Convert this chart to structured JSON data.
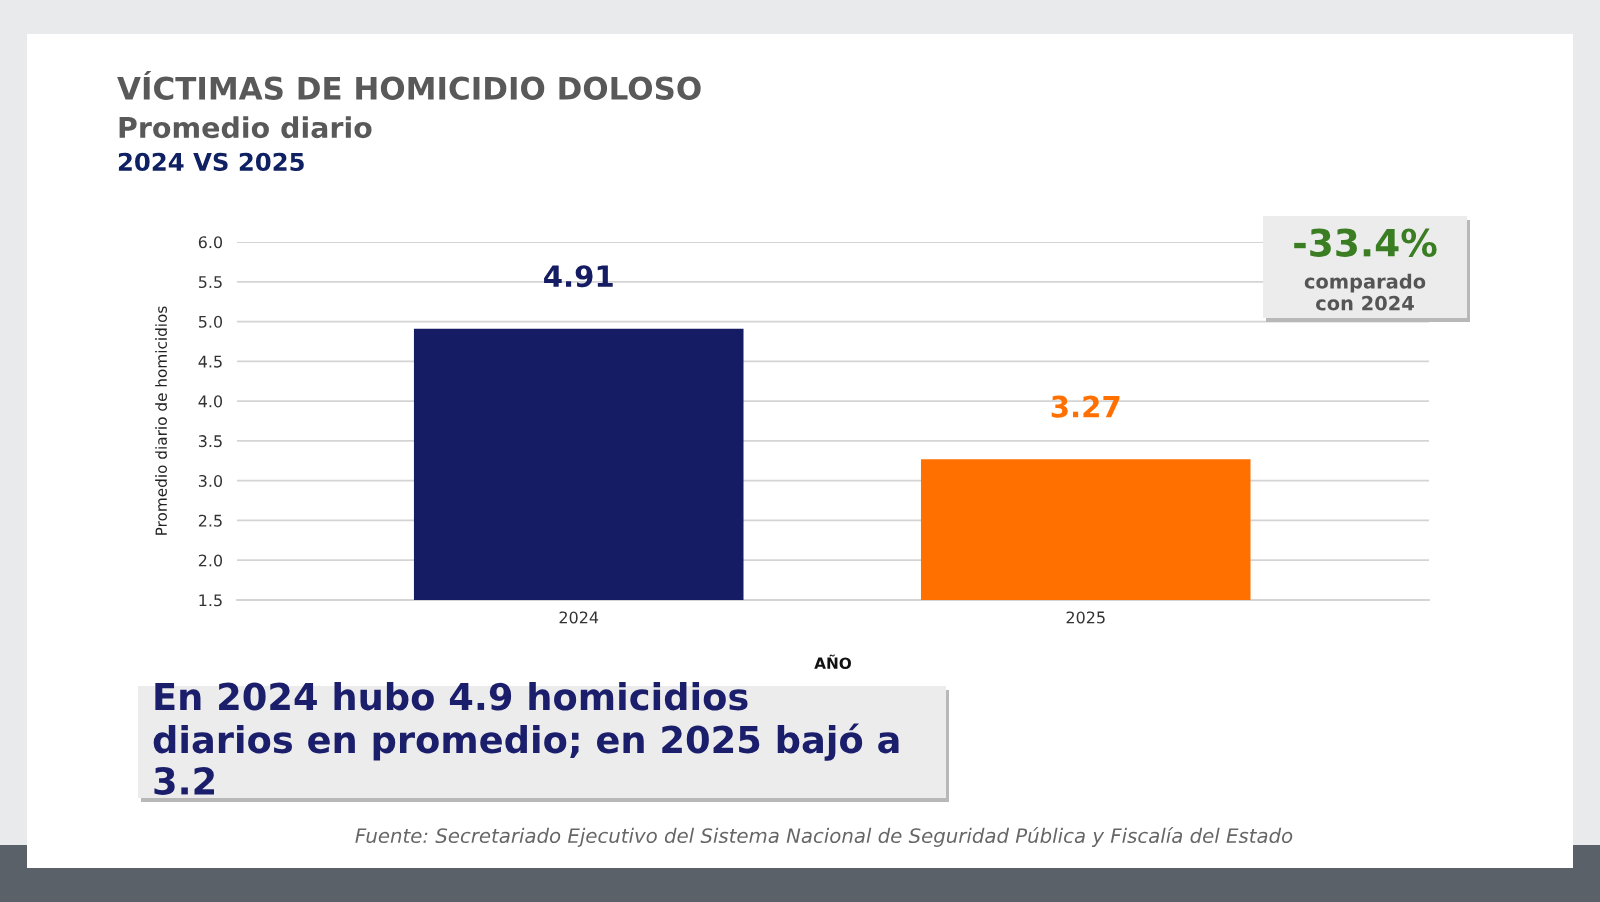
{
  "chart_data": {
    "type": "bar",
    "title": "VÍCTIMAS DE HOMICIDIO DOLOSO",
    "subtitle": "Promedio diario\n2024 VS 2025",
    "xlabel": "AÑO",
    "ylabel": "Promedio diario de homicidios",
    "categories": [
      "2024",
      "2025"
    ],
    "values": [
      4.91,
      3.27
    ],
    "colors": [
      "#161c63",
      "#ff7000"
    ],
    "ylim": [
      1.5,
      6.0
    ],
    "yticks": [
      1.5,
      {
        "value": 2,
        "label": "2.0"
      },
      2.5,
      {
        "value": 3,
        "label": "3.0"
      },
      3.5,
      {
        "value": 4,
        "label": "4.0"
      },
      4.5,
      {
        "value": 5,
        "label": "5.0"
      },
      5.5,
      {
        "value": 6,
        "label": "6.0"
      }
    ],
    "grid": "y",
    "data_labels": true,
    "annotations": [
      "-33.4%\ncomparado\ncon 2024",
      "En 2024 hubo 4.9 homicidios\ndiarios en promedio; en 2025 bajó a\n3.2",
      "Fuente: Secretariado Ejecutivo del Sistema Nacional de Seguridad Pública y Fiscalía del Estado"
    ]
  }
}
